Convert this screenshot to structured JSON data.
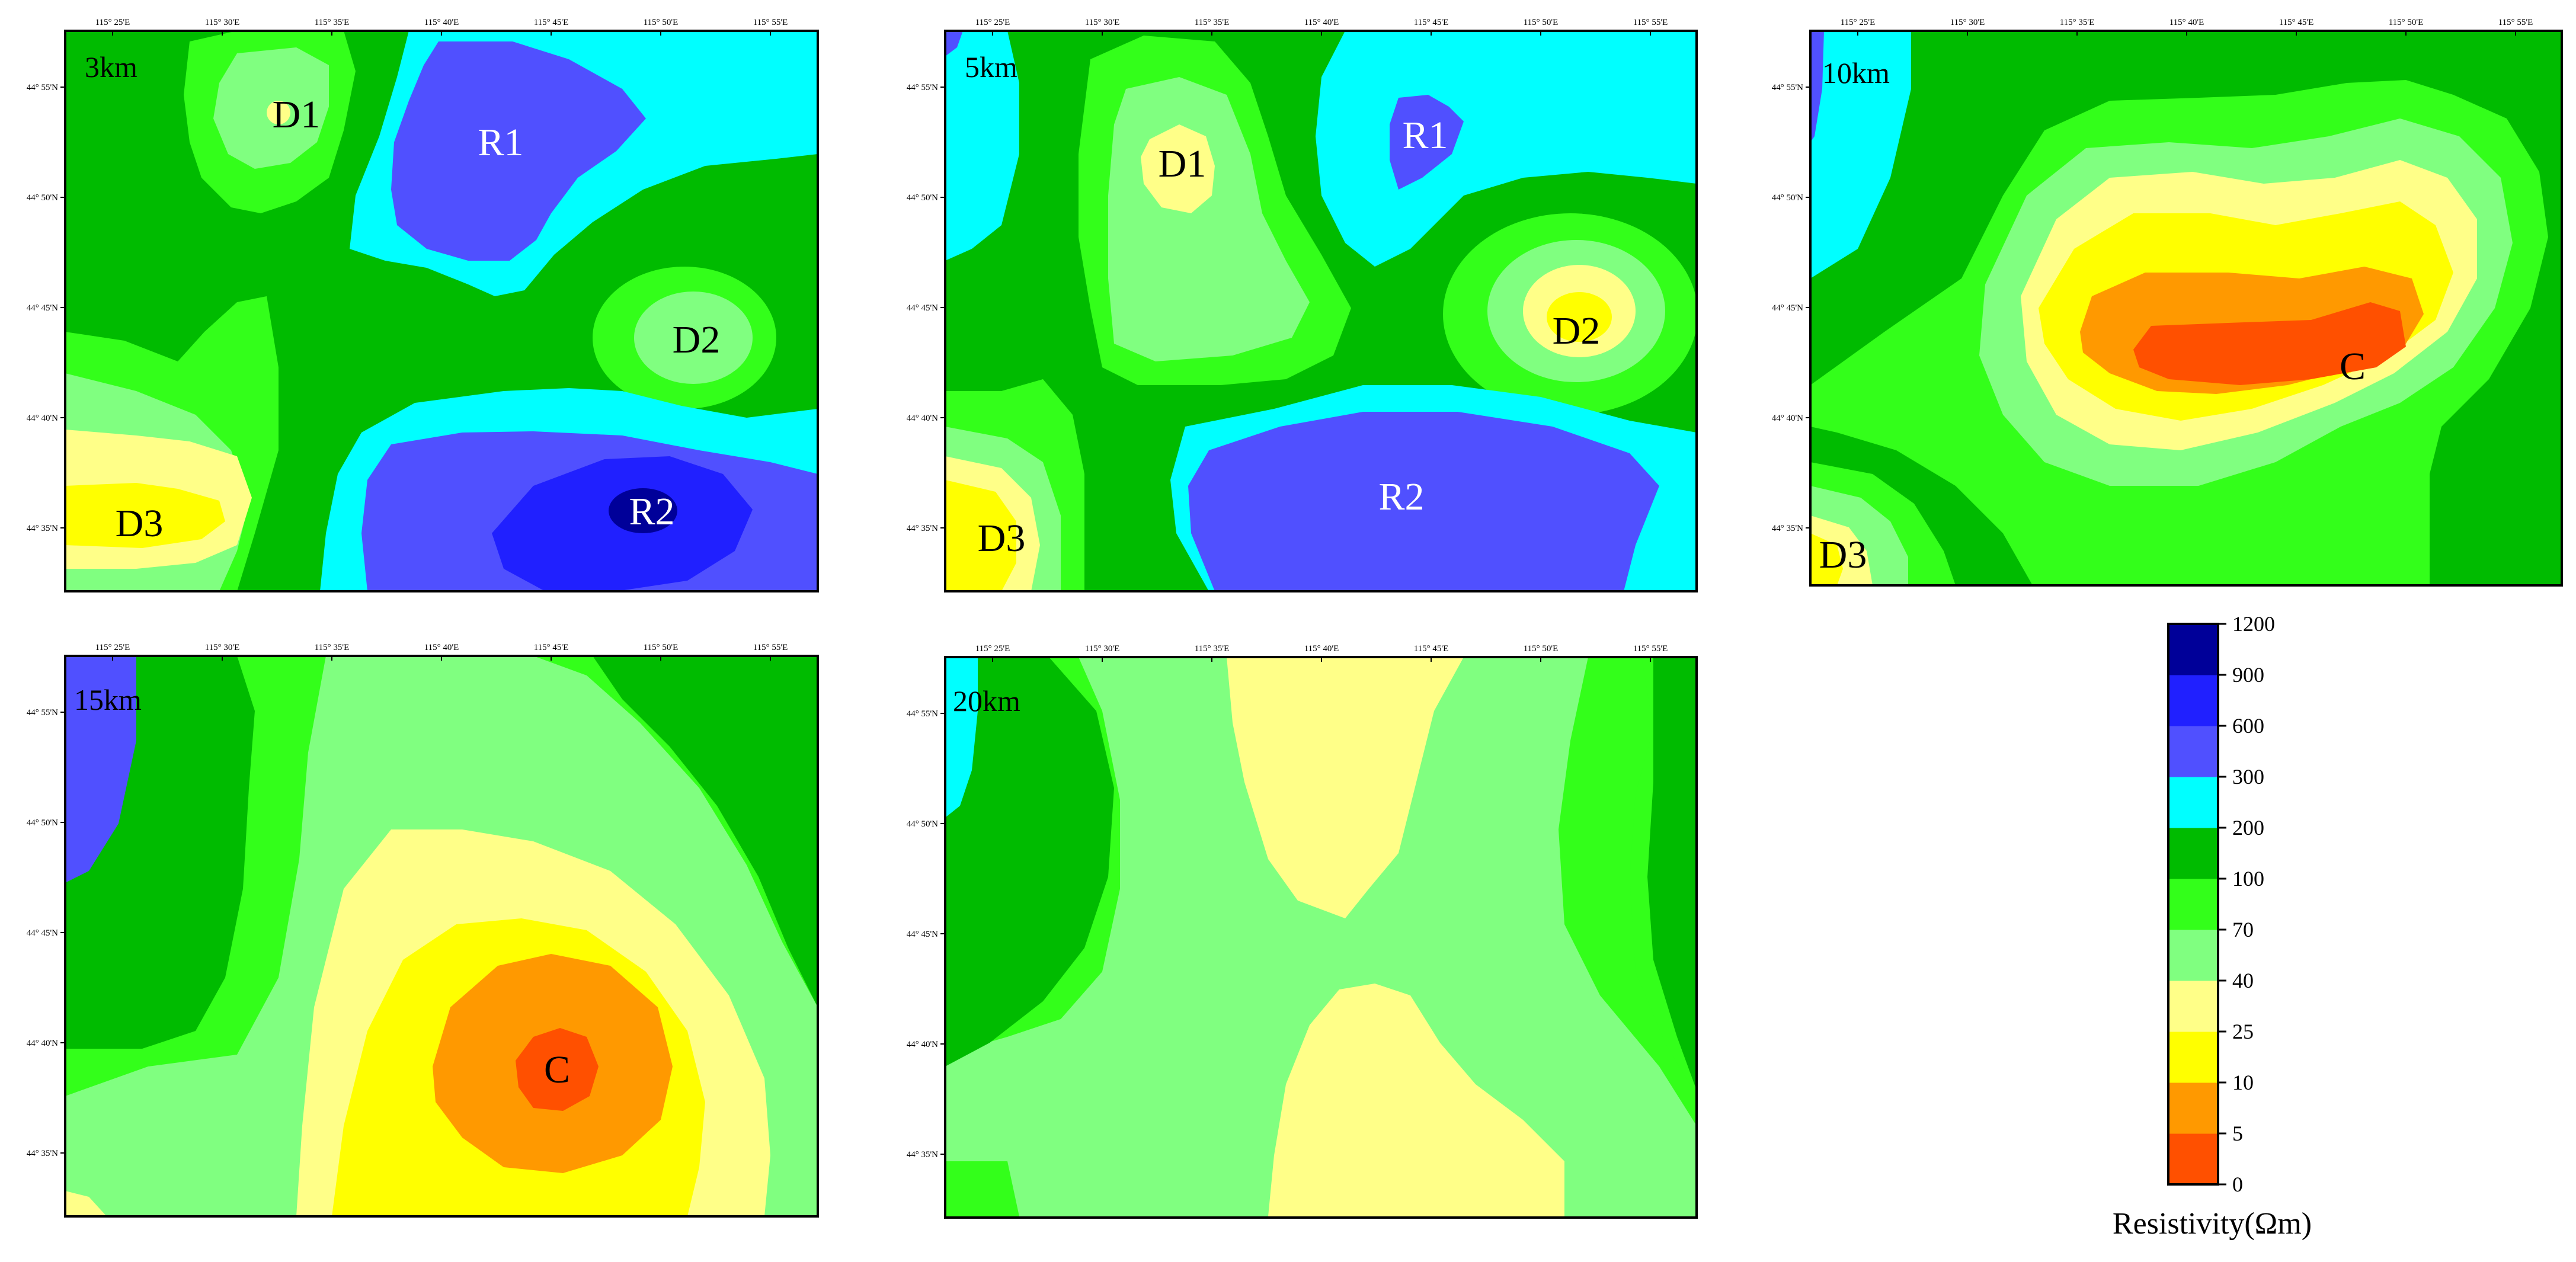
{
  "figure": {
    "lon_ticks": [
      "115° 25'E",
      "115° 30'E",
      "115° 35'E",
      "115° 40'E",
      "115° 45'E",
      "115° 50'E",
      "115° 55'E"
    ],
    "lat_ticks": [
      "44° 55'N",
      "44° 50'N",
      "44° 45'N",
      "44° 40'N",
      "44° 35'N"
    ],
    "panels": [
      {
        "depth": "3km",
        "labels": [
          "D1",
          "R1",
          "D2",
          "D3",
          "R2"
        ]
      },
      {
        "depth": "5km",
        "labels": [
          "D1",
          "R1",
          "D2",
          "D3",
          "R2"
        ]
      },
      {
        "depth": "10km",
        "labels": [
          "C",
          "D3"
        ]
      },
      {
        "depth": "15km",
        "labels": [
          "C"
        ]
      },
      {
        "depth": "20km",
        "labels": []
      }
    ]
  },
  "legend": {
    "title": "Resistivity(Ωm)",
    "levels": [
      "0",
      "5",
      "10",
      "25",
      "40",
      "70",
      "100",
      "200",
      "300",
      "600",
      "900",
      "1200"
    ],
    "colors": [
      "#ff5000",
      "#ff9900",
      "#ffff00",
      "#ffff88",
      "#80ff80",
      "#33ff1a",
      "#00bb00",
      "#00ffff",
      "#5050ff",
      "#2020ff",
      "#000099"
    ]
  }
}
